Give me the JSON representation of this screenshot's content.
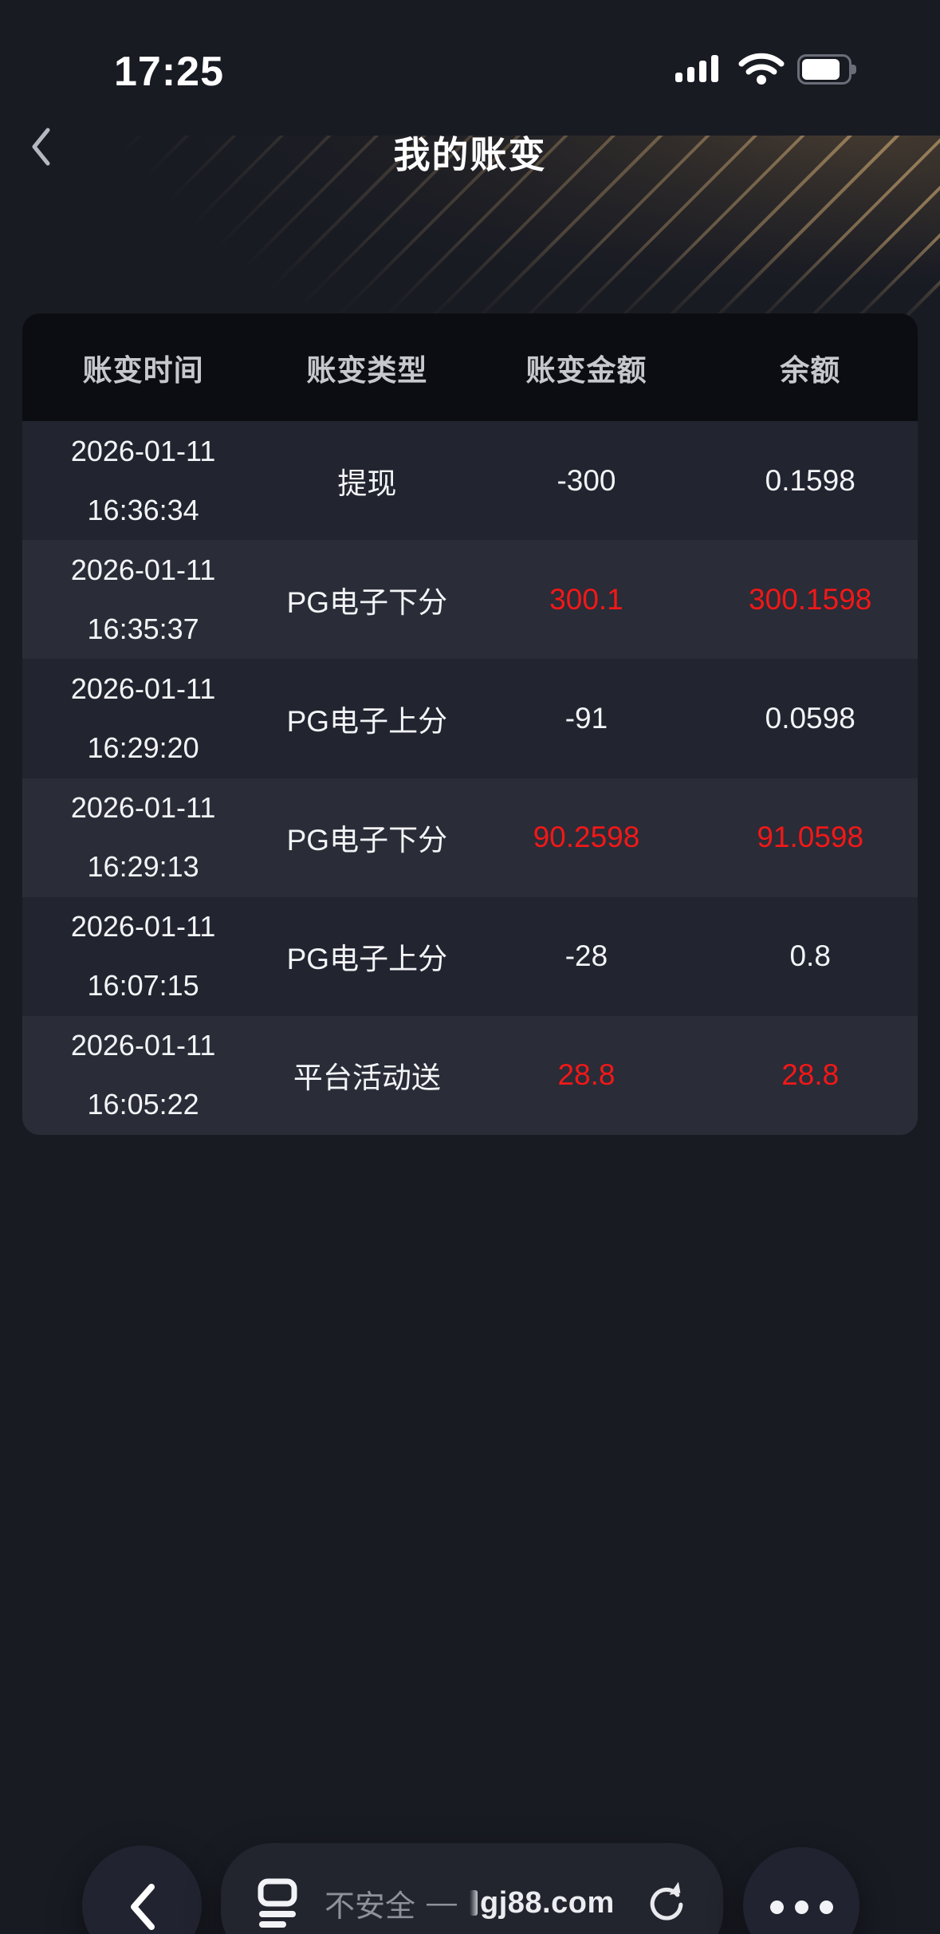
{
  "status_bar": {
    "time": "17:25",
    "battery_level": 0.7
  },
  "header": {
    "title": "我的账变"
  },
  "table": {
    "columns": [
      "账变时间",
      "账变类型",
      "账变金额",
      "余额"
    ],
    "rows": [
      {
        "date": "2026-01-11",
        "time": "16:36:34",
        "type": "提现",
        "amount": "-300",
        "balance": "0.1598",
        "red": false
      },
      {
        "date": "2026-01-11",
        "time": "16:35:37",
        "type": "PG电子下分",
        "amount": "300.1",
        "balance": "300.1598",
        "red": true
      },
      {
        "date": "2026-01-11",
        "time": "16:29:20",
        "type": "PG电子上分",
        "amount": "-91",
        "balance": "0.0598",
        "red": false
      },
      {
        "date": "2026-01-11",
        "time": "16:29:13",
        "type": "PG电子下分",
        "amount": "90.2598",
        "balance": "91.0598",
        "red": true
      },
      {
        "date": "2026-01-11",
        "time": "16:07:15",
        "type": "PG电子上分",
        "amount": "-28",
        "balance": "0.8",
        "red": false
      },
      {
        "date": "2026-01-11",
        "time": "16:05:22",
        "type": "平台活动送",
        "amount": "28.8",
        "balance": "28.8",
        "red": true
      }
    ]
  },
  "browser": {
    "security_label": "不安全",
    "separator": "—",
    "domain": "gj88.com"
  },
  "colors": {
    "page_bg": "#191b23",
    "table_header_bg": "#0c0d12",
    "table_header_text": "#c6c8ce",
    "row_dark": "#22242f",
    "row_light": "#2a2c37",
    "text_primary": "#f3f4f7",
    "negative_red": "#f21818",
    "gold_line": "#cba772"
  }
}
